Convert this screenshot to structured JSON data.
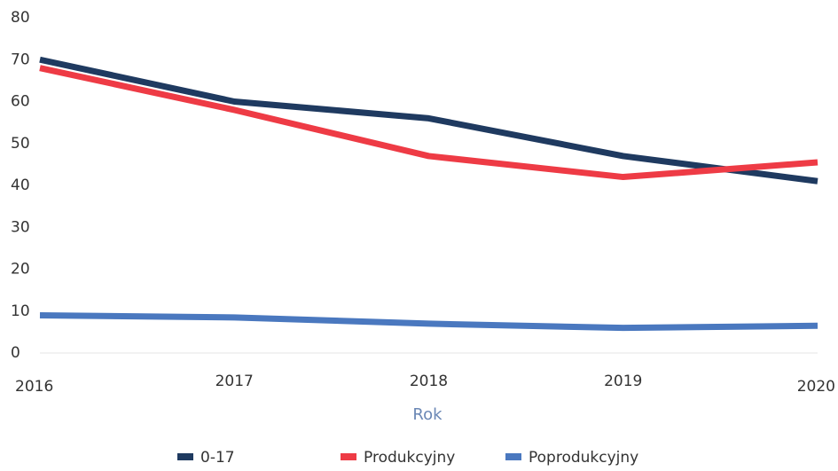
{
  "chart_data": {
    "type": "line",
    "x": [
      2016,
      2017,
      2018,
      2019,
      2020
    ],
    "xlim": [
      2016,
      2020
    ],
    "xticks": [
      2016,
      2017,
      2018,
      2019,
      2020
    ],
    "ylim": [
      0,
      80
    ],
    "yticks": [
      0,
      10,
      20,
      30,
      40,
      50,
      60,
      70,
      80
    ],
    "x_label": "Rok",
    "grid": false,
    "legend": "bottom",
    "series": [
      {
        "name": "0-17",
        "color": "#1f3a60",
        "values": [
          70,
          60,
          56,
          47,
          41
        ]
      },
      {
        "name": "Produkcyjny",
        "color": "#ee3b45",
        "values": [
          68,
          58,
          47,
          42,
          45.5
        ]
      },
      {
        "name": "Poprodukcyjny",
        "color": "#4a78bf",
        "values": [
          9,
          8.5,
          7,
          6,
          6.5
        ]
      }
    ]
  }
}
